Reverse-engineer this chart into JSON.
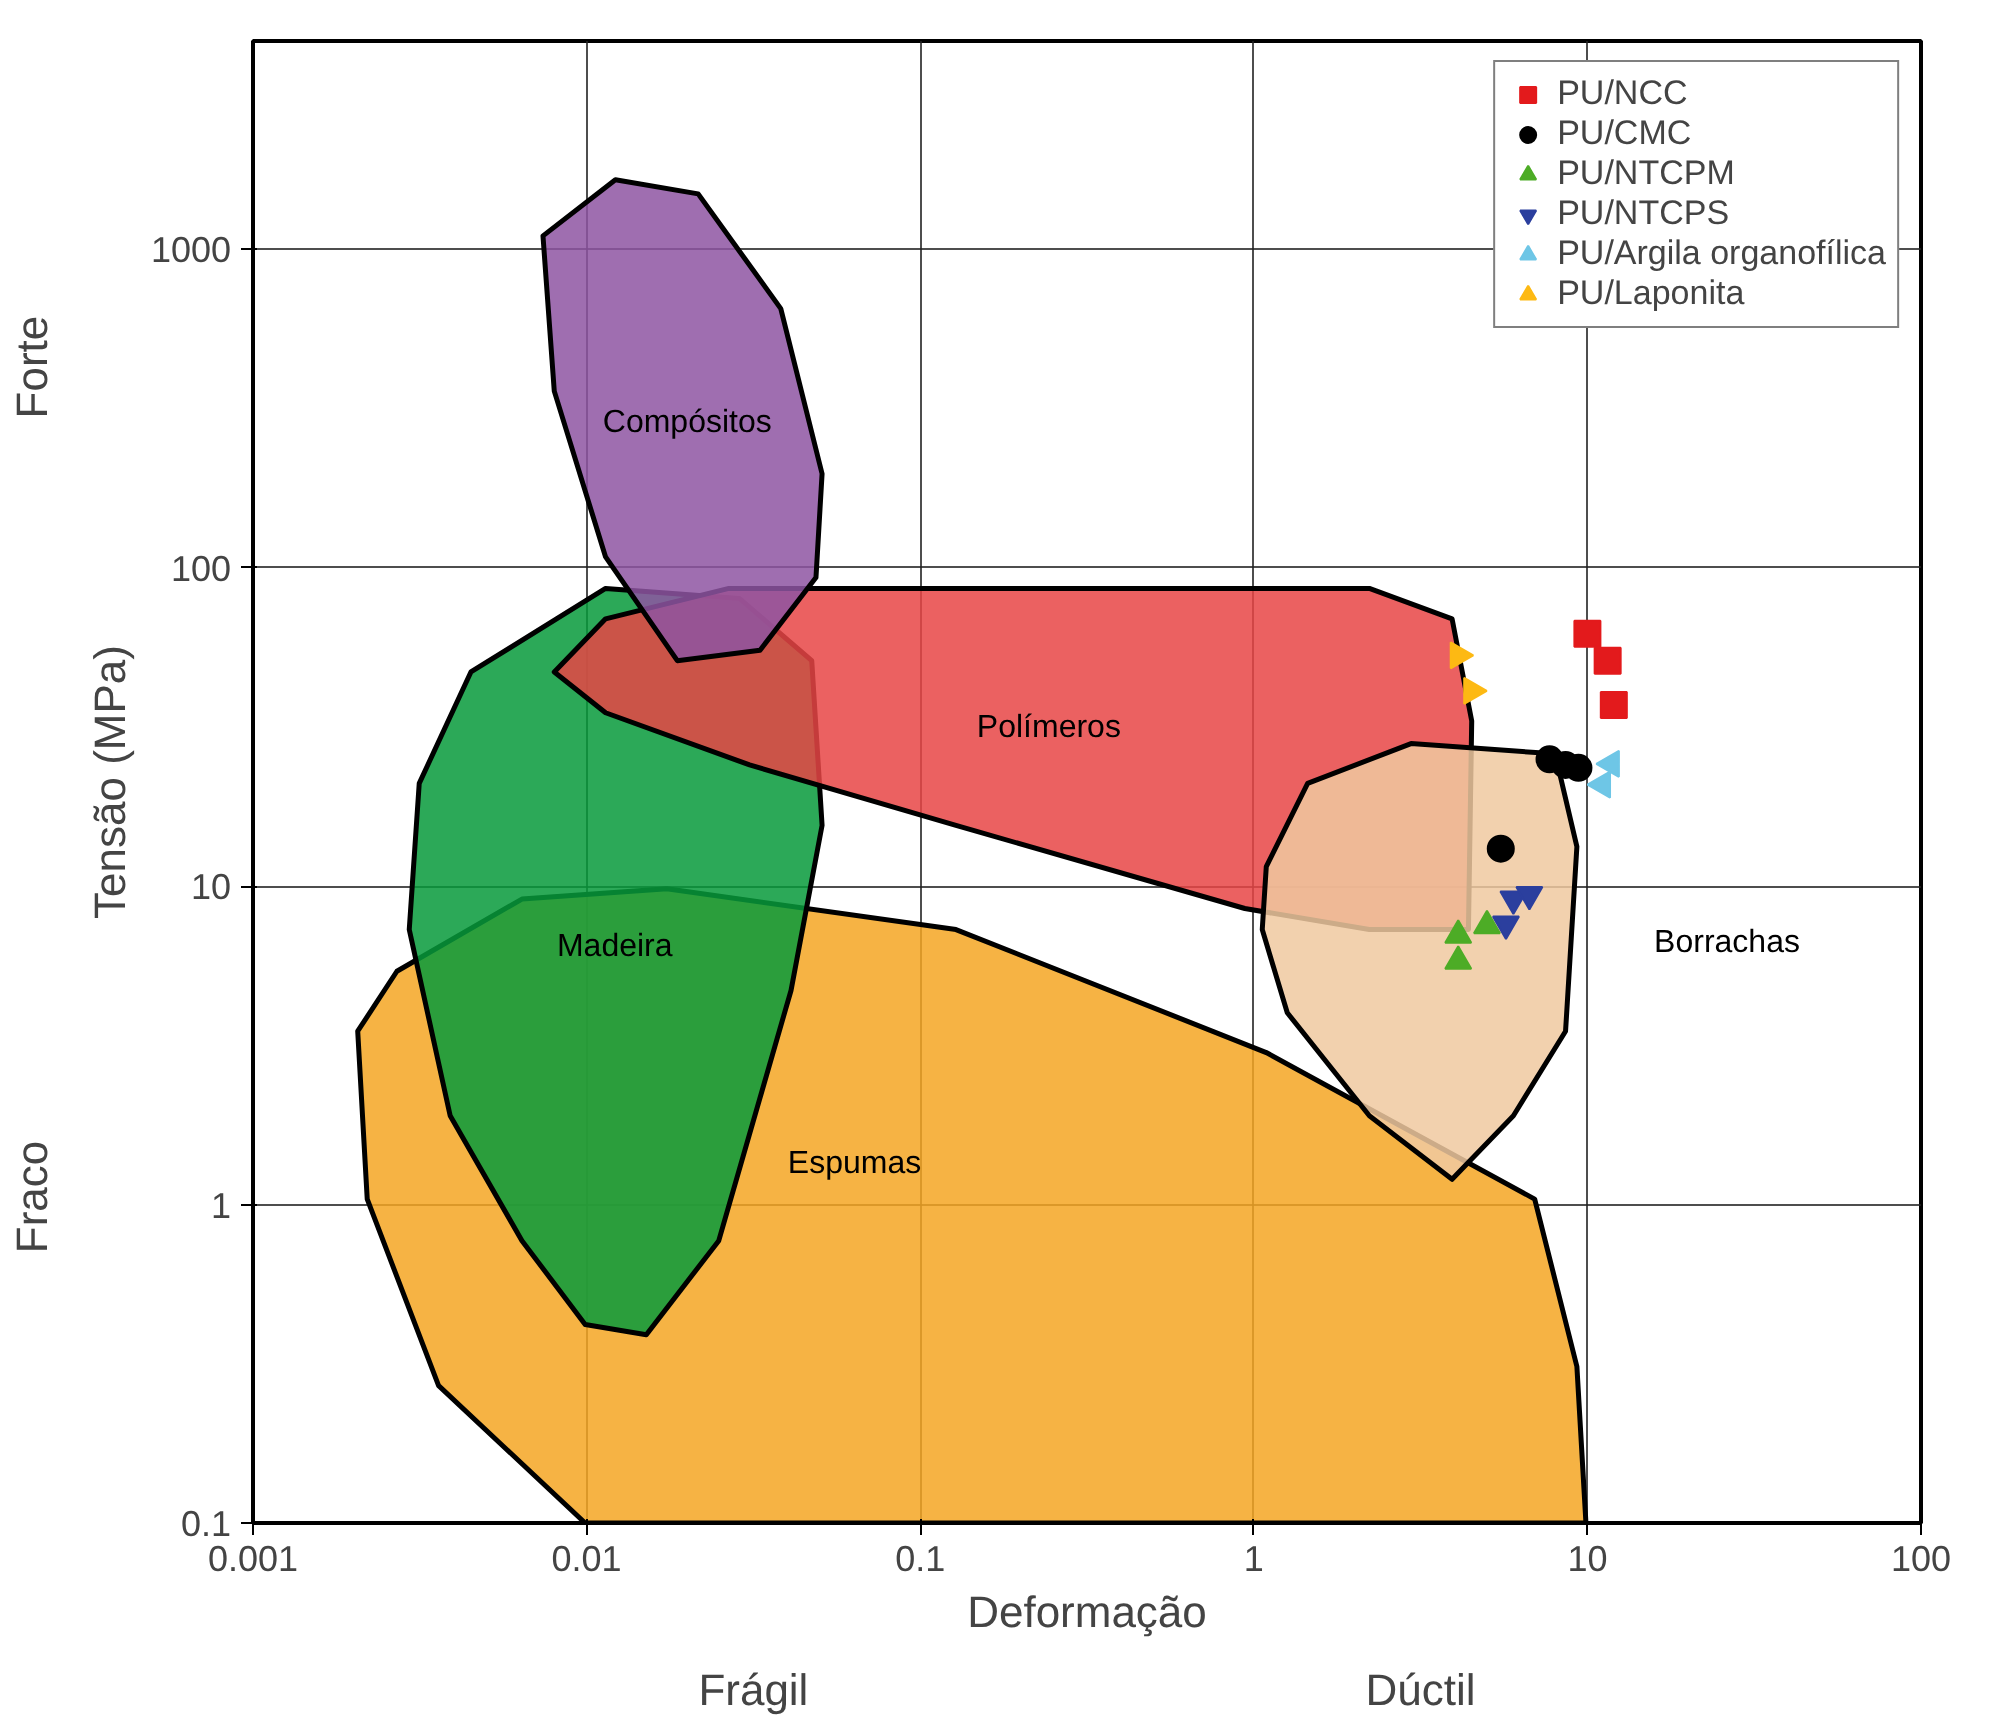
{
  "chart_data": {
    "type": "scatter",
    "xlabel": "Deformação",
    "ylabel": "Tensão (MPa)",
    "log": "xy",
    "xlim": [
      0.001,
      100
    ],
    "ylim": [
      0.1,
      4500
    ],
    "xticks": [
      0.001,
      0.01,
      0.1,
      1,
      10,
      100
    ],
    "yticks": [
      0.1,
      1,
      10,
      100,
      1000
    ],
    "grid": true,
    "legend": "top right",
    "series": [
      {
        "type": "area",
        "name": "Espumas",
        "color": "#f5a623",
        "x": [
          0.00206,
          0.0027,
          0.0064,
          0.0174,
          0.128,
          1.09,
          6.95,
          9.3,
          9.9,
          0.0099,
          0.0036,
          0.0022
        ],
        "values": [
          3.5,
          5.4,
          9.1,
          9.8,
          7.3,
          3.0,
          1.04,
          0.31,
          0.1,
          0.1,
          0.27,
          1.04
        ]
      },
      {
        "type": "area",
        "name": "Madeira",
        "color": "#079a3b",
        "x": [
          0.00294,
          0.00315,
          0.0045,
          0.0114,
          0.0287,
          0.0473,
          0.0508,
          0.041,
          0.0249,
          0.0151,
          0.0099,
          0.0064,
          0.0039
        ],
        "values": [
          7.3,
          21,
          47,
          86,
          80,
          51,
          15.5,
          4.7,
          0.77,
          0.39,
          0.42,
          0.77,
          1.9
        ]
      },
      {
        "type": "area",
        "name": "Polímeros",
        "color": "#e84545",
        "x": [
          0.008,
          0.0114,
          0.0267,
          0.262,
          2.22,
          3.93,
          4.5,
          4.4,
          2.22,
          0.94,
          0.128,
          0.0308,
          0.0114
        ],
        "values": [
          47,
          69,
          86,
          86,
          86,
          69,
          33,
          7.3,
          7.3,
          8.5,
          15.5,
          24,
          35
        ]
      },
      {
        "type": "area",
        "name": "Compósitos",
        "color": "#8e55a2",
        "x": [
          0.0074,
          0.0122,
          0.0216,
          0.0382,
          0.0508,
          0.0487,
          0.0331,
          0.0187,
          0.0114,
          0.008
        ],
        "values": [
          1100,
          1650,
          1490,
          650,
          197,
          93,
          55,
          51,
          108,
          358
        ]
      },
      {
        "type": "area",
        "name": "Borrachas",
        "color": "#f0c9a0",
        "x": [
          1.09,
          1.45,
          2.96,
          8.0,
          9.3,
          8.6,
          6.0,
          3.93,
          2.22,
          1.26,
          1.06
        ],
        "values": [
          11.5,
          21,
          28,
          26,
          13.3,
          3.5,
          1.9,
          1.2,
          1.9,
          4.0,
          7.3
        ]
      },
      {
        "name": "PU/NCC",
        "color": "#e31a1c",
        "marker": "square",
        "x": [
          10,
          11.5,
          12
        ],
        "values": [
          62,
          51,
          37
        ]
      },
      {
        "name": "PU/CMC",
        "color": "#000000",
        "marker": "circle",
        "x": [
          7.7,
          8.6,
          9.4,
          5.5
        ],
        "values": [
          25,
          24,
          23.5,
          13.1
        ]
      },
      {
        "name": "PU/NTCPM",
        "color": "#4dac26",
        "marker": "triangle",
        "x": [
          4.1,
          4.1,
          5.0
        ],
        "values": [
          7.0,
          5.8,
          7.5
        ]
      },
      {
        "name": "PU/NTCPS",
        "color": "#2b3f9e",
        "marker": "triangle_down",
        "x": [
          6.0,
          6.7,
          5.7
        ],
        "values": [
          9.1,
          9.4,
          7.6
        ]
      },
      {
        "name": "PU/Argila organofílica",
        "color": "#6ec6e6",
        "marker": "triangle_left",
        "x": [
          11.8,
          11.1
        ],
        "values": [
          24.2,
          20.8
        ]
      },
      {
        "name": "PU/Laponita",
        "color": "#fdb913",
        "marker": "triangle_right",
        "x": [
          4.1,
          4.5
        ],
        "values": [
          53,
          41
        ]
      }
    ],
    "annotations": [
      "Forte",
      "Fraco",
      "Frágil",
      "Dúctil"
    ]
  }
}
